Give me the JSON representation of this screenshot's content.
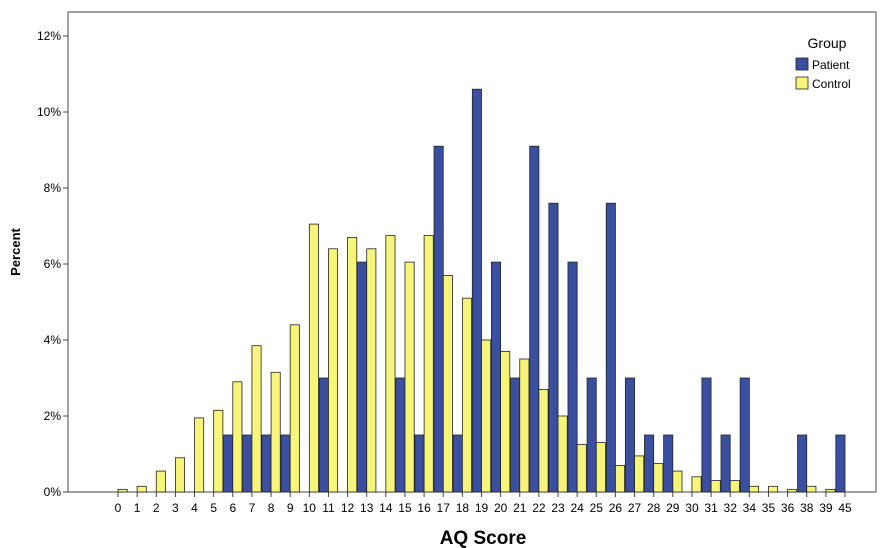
{
  "chart_data": {
    "type": "bar",
    "xlabel": "AQ Score",
    "ylabel": "Percent",
    "categories": [
      "0",
      "1",
      "2",
      "3",
      "4",
      "5",
      "6",
      "7",
      "8",
      "9",
      "10",
      "11",
      "12",
      "13",
      "14",
      "15",
      "16",
      "17",
      "18",
      "19",
      "20",
      "21",
      "22",
      "23",
      "24",
      "25",
      "26",
      "27",
      "28",
      "29",
      "30",
      "31",
      "32",
      "34",
      "35",
      "36",
      "38",
      "39",
      "45"
    ],
    "y_ticks": [
      "0%",
      "2%",
      "4%",
      "6%",
      "8%",
      "10%",
      "12%"
    ],
    "ylim": [
      0,
      12
    ],
    "legend": {
      "title": "Group",
      "placement": "top-right"
    },
    "series": [
      {
        "name": "Patient",
        "color": "#3a4fa0",
        "values": [
          0,
          0,
          0,
          0,
          0,
          0,
          1.5,
          1.5,
          1.5,
          1.5,
          0,
          3.0,
          0,
          6.05,
          0,
          3.0,
          1.5,
          9.1,
          1.5,
          10.6,
          6.05,
          3.0,
          9.1,
          7.6,
          6.05,
          3.0,
          7.6,
          3.0,
          1.5,
          1.5,
          0,
          3.0,
          1.5,
          3.0,
          0,
          0,
          1.5,
          0,
          1.5
        ]
      },
      {
        "name": "Control",
        "color": "#f6f57a",
        "values": [
          0.07,
          0.15,
          0.55,
          0.9,
          1.95,
          2.15,
          2.9,
          3.85,
          3.15,
          4.4,
          7.05,
          6.4,
          6.7,
          6.4,
          6.75,
          6.05,
          6.75,
          5.7,
          5.1,
          4.0,
          3.7,
          3.5,
          2.7,
          2.0,
          1.25,
          1.3,
          0.7,
          0.95,
          0.75,
          0.55,
          0.4,
          0.3,
          0.3,
          0.15,
          0.15,
          0.07,
          0.15,
          0.07,
          0
        ]
      }
    ],
    "grid": false
  }
}
